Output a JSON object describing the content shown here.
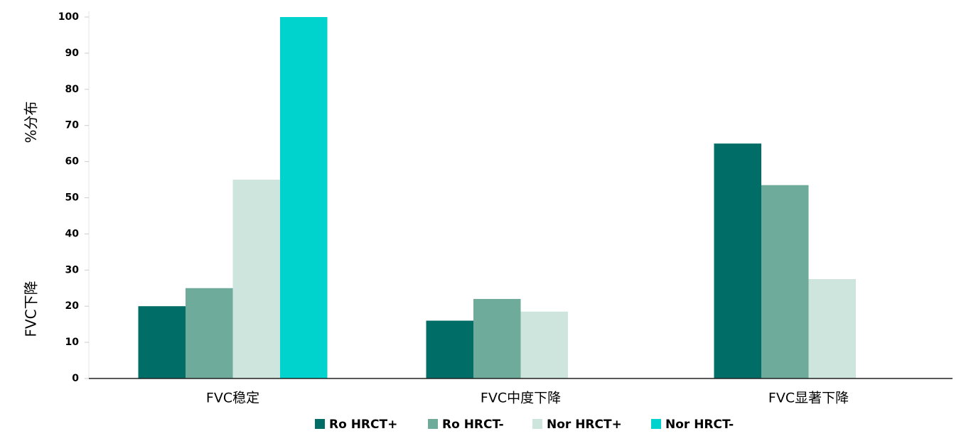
{
  "chart_data": {
    "type": "bar",
    "y_labels": [
      "%分布",
      "FVC下降"
    ],
    "categories": [
      "FVC稳定",
      "FVC中度下降",
      "FVC显著下降"
    ],
    "series": [
      {
        "name": "Ro HRCT+",
        "color": "#006e66",
        "values": [
          20,
          16,
          65
        ]
      },
      {
        "name": "Ro HRCT-",
        "color": "#6fab9a",
        "values": [
          25,
          22,
          53.5
        ]
      },
      {
        "name": "Nor HRCT+",
        "color": "#cde5dd",
        "values": [
          55,
          18.5,
          27.5
        ]
      },
      {
        "name": "Nor HRCT-",
        "color": "#00d2cd",
        "values": [
          100,
          0,
          0
        ]
      }
    ],
    "ylim": [
      0,
      100
    ],
    "yticks": [
      0,
      10,
      20,
      30,
      40,
      50,
      60,
      70,
      80,
      90,
      100
    ],
    "legend": "bottom"
  }
}
